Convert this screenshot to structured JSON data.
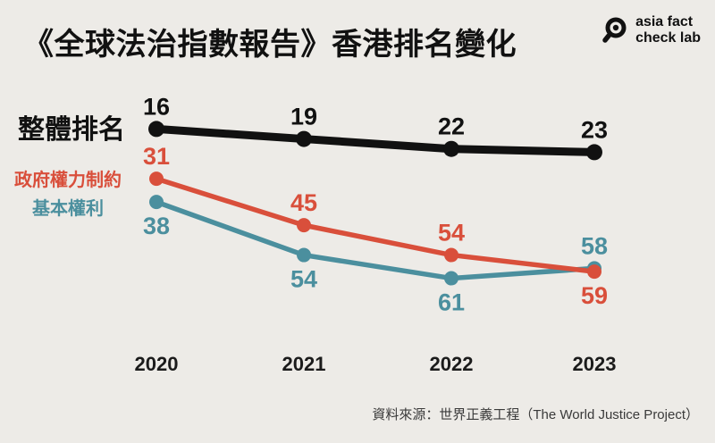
{
  "page": {
    "title": "《全球法治指數報告》香港排名變化",
    "logo": {
      "icon": "magnifier-icon",
      "line1": "asia fact",
      "line2": "check lab"
    },
    "source": "資料來源：世界正義工程（The World Justice Project）"
  },
  "chart_data": {
    "type": "line",
    "categories": [
      "2020",
      "2021",
      "2022",
      "2023"
    ],
    "series": [
      {
        "name": "整體排名",
        "values": [
          16,
          19,
          22,
          23
        ],
        "color": "#111111",
        "label_side": [
          "above",
          "above",
          "above",
          "above"
        ]
      },
      {
        "name": "政府權力制約",
        "values": [
          31,
          45,
          54,
          59
        ],
        "color": "#D94F3B",
        "label_side": [
          "above",
          "above",
          "above",
          "below"
        ]
      },
      {
        "name": "基本權利",
        "values": [
          38,
          54,
          61,
          58
        ],
        "color": "#4B8F9E",
        "label_side": [
          "below",
          "below",
          "below",
          "above"
        ]
      }
    ],
    "title": "《全球法治指數報告》香港排名變化",
    "xlabel": "",
    "ylabel": "",
    "y_axis": {
      "inverted": true,
      "lower_is_better": true,
      "range_shown": [
        16,
        61
      ]
    },
    "grid": false,
    "legend_position": "left"
  }
}
